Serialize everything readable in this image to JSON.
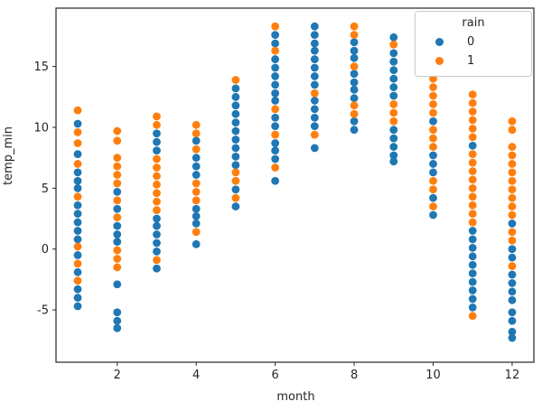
{
  "chart_data": {
    "type": "scatter",
    "title": "",
    "xlabel": "month",
    "ylabel": "temp_min",
    "xlim": [
      0.45,
      12.55
    ],
    "ylim": [
      -9.3,
      19.8
    ],
    "xticks": [
      2,
      4,
      6,
      8,
      10,
      12
    ],
    "yticks": [
      -5,
      0,
      5,
      10,
      15
    ],
    "grid": false,
    "marker_radius": 4.4,
    "axis_color": "#262626",
    "legend": {
      "title": "rain",
      "position": "upper right",
      "entries": [
        {
          "label": "0",
          "color": "#1f77b4"
        },
        {
          "label": "1",
          "color": "#ff7f0e"
        }
      ]
    },
    "series": [
      {
        "name": "0",
        "color": "#1f77b4",
        "points": [
          [
            1,
            10.3
          ],
          [
            1,
            7.8
          ],
          [
            1,
            6.3
          ],
          [
            1,
            5.6
          ],
          [
            1,
            5.0
          ],
          [
            1,
            3.6
          ],
          [
            1,
            2.9
          ],
          [
            1,
            2.2
          ],
          [
            1,
            1.5
          ],
          [
            1,
            0.8
          ],
          [
            1,
            -0.5
          ],
          [
            1,
            -1.9
          ],
          [
            1,
            -3.3
          ],
          [
            1,
            -4.0
          ],
          [
            1,
            -4.7
          ],
          [
            2,
            4.7
          ],
          [
            2,
            3.3
          ],
          [
            2,
            1.9
          ],
          [
            2,
            1.2
          ],
          [
            2,
            0.6
          ],
          [
            2,
            -2.9
          ],
          [
            2,
            -5.2
          ],
          [
            2,
            -5.9
          ],
          [
            2,
            -6.5
          ],
          [
            3,
            9.5
          ],
          [
            3,
            8.8
          ],
          [
            3,
            8.1
          ],
          [
            3,
            2.5
          ],
          [
            3,
            1.9
          ],
          [
            3,
            1.2
          ],
          [
            3,
            0.5
          ],
          [
            3,
            -0.2
          ],
          [
            3,
            -1.6
          ],
          [
            4,
            8.9
          ],
          [
            4,
            7.5
          ],
          [
            4,
            6.8
          ],
          [
            4,
            6.1
          ],
          [
            4,
            3.3
          ],
          [
            4,
            2.7
          ],
          [
            4,
            2.1
          ],
          [
            4,
            0.4
          ],
          [
            5,
            13.2
          ],
          [
            5,
            12.5
          ],
          [
            5,
            11.8
          ],
          [
            5,
            11.1
          ],
          [
            5,
            10.4
          ],
          [
            5,
            9.7
          ],
          [
            5,
            9.0
          ],
          [
            5,
            8.3
          ],
          [
            5,
            7.6
          ],
          [
            5,
            6.9
          ],
          [
            5,
            4.9
          ],
          [
            5,
            3.5
          ],
          [
            6,
            17.6
          ],
          [
            6,
            16.9
          ],
          [
            6,
            15.6
          ],
          [
            6,
            14.9
          ],
          [
            6,
            14.2
          ],
          [
            6,
            13.5
          ],
          [
            6,
            12.8
          ],
          [
            6,
            12.2
          ],
          [
            6,
            10.8
          ],
          [
            6,
            10.1
          ],
          [
            6,
            8.7
          ],
          [
            6,
            8.1
          ],
          [
            6,
            7.4
          ],
          [
            6,
            5.6
          ],
          [
            7,
            18.3
          ],
          [
            7,
            17.6
          ],
          [
            7,
            16.9
          ],
          [
            7,
            16.3
          ],
          [
            7,
            15.6
          ],
          [
            7,
            14.9
          ],
          [
            7,
            14.2
          ],
          [
            7,
            13.5
          ],
          [
            7,
            12.2
          ],
          [
            7,
            11.5
          ],
          [
            7,
            10.8
          ],
          [
            7,
            10.1
          ],
          [
            7,
            8.3
          ],
          [
            8,
            17.0
          ],
          [
            8,
            16.3
          ],
          [
            8,
            15.7
          ],
          [
            8,
            14.4
          ],
          [
            8,
            13.7
          ],
          [
            8,
            13.1
          ],
          [
            8,
            12.4
          ],
          [
            8,
            10.5
          ],
          [
            8,
            9.8
          ],
          [
            9,
            17.4
          ],
          [
            9,
            16.1
          ],
          [
            9,
            15.4
          ],
          [
            9,
            14.7
          ],
          [
            9,
            14.0
          ],
          [
            9,
            13.3
          ],
          [
            9,
            12.6
          ],
          [
            9,
            9.8
          ],
          [
            9,
            9.1
          ],
          [
            9,
            8.4
          ],
          [
            9,
            7.7
          ],
          [
            9,
            7.2
          ],
          [
            10,
            10.5
          ],
          [
            10,
            7.7
          ],
          [
            10,
            7.0
          ],
          [
            10,
            6.3
          ],
          [
            10,
            4.2
          ],
          [
            10,
            2.8
          ],
          [
            11,
            8.5
          ],
          [
            11,
            1.5
          ],
          [
            11,
            0.8
          ],
          [
            11,
            0.1
          ],
          [
            11,
            -0.6
          ],
          [
            11,
            -1.3
          ],
          [
            11,
            -2.0
          ],
          [
            11,
            -2.7
          ],
          [
            11,
            -3.4
          ],
          [
            11,
            -4.1
          ],
          [
            11,
            -4.8
          ],
          [
            12,
            2.1
          ],
          [
            12,
            0.0
          ],
          [
            12,
            -0.7
          ],
          [
            12,
            -2.1
          ],
          [
            12,
            -2.8
          ],
          [
            12,
            -3.5
          ],
          [
            12,
            -4.2
          ],
          [
            12,
            -5.2
          ],
          [
            12,
            -5.9
          ],
          [
            12,
            -6.8
          ],
          [
            12,
            -7.3
          ]
        ]
      },
      {
        "name": "1",
        "color": "#ff7f0e",
        "points": [
          [
            1,
            11.4
          ],
          [
            1,
            9.6
          ],
          [
            1,
            8.7
          ],
          [
            1,
            7.0
          ],
          [
            1,
            4.3
          ],
          [
            1,
            0.2
          ],
          [
            1,
            -1.2
          ],
          [
            1,
            -2.6
          ],
          [
            2,
            9.7
          ],
          [
            2,
            8.9
          ],
          [
            2,
            7.5
          ],
          [
            2,
            6.8
          ],
          [
            2,
            6.1
          ],
          [
            2,
            5.4
          ],
          [
            2,
            4.0
          ],
          [
            2,
            2.6
          ],
          [
            2,
            -0.1
          ],
          [
            2,
            -0.8
          ],
          [
            2,
            -1.5
          ],
          [
            3,
            10.9
          ],
          [
            3,
            10.2
          ],
          [
            3,
            7.4
          ],
          [
            3,
            6.7
          ],
          [
            3,
            6.0
          ],
          [
            3,
            5.3
          ],
          [
            3,
            4.6
          ],
          [
            3,
            3.9
          ],
          [
            3,
            3.2
          ],
          [
            3,
            -0.9
          ],
          [
            4,
            10.2
          ],
          [
            4,
            9.5
          ],
          [
            4,
            8.2
          ],
          [
            4,
            5.4
          ],
          [
            4,
            4.7
          ],
          [
            4,
            4.0
          ],
          [
            4,
            1.4
          ],
          [
            5,
            13.9
          ],
          [
            5,
            6.3
          ],
          [
            5,
            5.6
          ],
          [
            5,
            4.2
          ],
          [
            6,
            18.3
          ],
          [
            6,
            16.3
          ],
          [
            6,
            11.5
          ],
          [
            6,
            9.4
          ],
          [
            6,
            6.7
          ],
          [
            7,
            12.8
          ],
          [
            7,
            9.4
          ],
          [
            8,
            18.3
          ],
          [
            8,
            17.6
          ],
          [
            8,
            15.0
          ],
          [
            8,
            11.8
          ],
          [
            8,
            11.1
          ],
          [
            9,
            16.8
          ],
          [
            9,
            11.9
          ],
          [
            9,
            11.2
          ],
          [
            9,
            10.5
          ],
          [
            10,
            14.0
          ],
          [
            10,
            13.3
          ],
          [
            10,
            12.6
          ],
          [
            10,
            11.9
          ],
          [
            10,
            11.2
          ],
          [
            10,
            9.8
          ],
          [
            10,
            9.1
          ],
          [
            10,
            8.4
          ],
          [
            10,
            5.6
          ],
          [
            10,
            4.9
          ],
          [
            10,
            3.5
          ],
          [
            11,
            12.7
          ],
          [
            11,
            12.0
          ],
          [
            11,
            11.3
          ],
          [
            11,
            10.6
          ],
          [
            11,
            9.9
          ],
          [
            11,
            9.2
          ],
          [
            11,
            7.8
          ],
          [
            11,
            7.1
          ],
          [
            11,
            6.4
          ],
          [
            11,
            5.7
          ],
          [
            11,
            5.0
          ],
          [
            11,
            4.3
          ],
          [
            11,
            3.6
          ],
          [
            11,
            2.9
          ],
          [
            11,
            2.2
          ],
          [
            11,
            -5.5
          ],
          [
            12,
            10.5
          ],
          [
            12,
            9.8
          ],
          [
            12,
            8.4
          ],
          [
            12,
            7.7
          ],
          [
            12,
            7.0
          ],
          [
            12,
            6.3
          ],
          [
            12,
            5.6
          ],
          [
            12,
            4.9
          ],
          [
            12,
            4.2
          ],
          [
            12,
            3.5
          ],
          [
            12,
            2.8
          ],
          [
            12,
            1.4
          ],
          [
            12,
            0.7
          ],
          [
            12,
            -1.4
          ]
        ]
      }
    ]
  }
}
